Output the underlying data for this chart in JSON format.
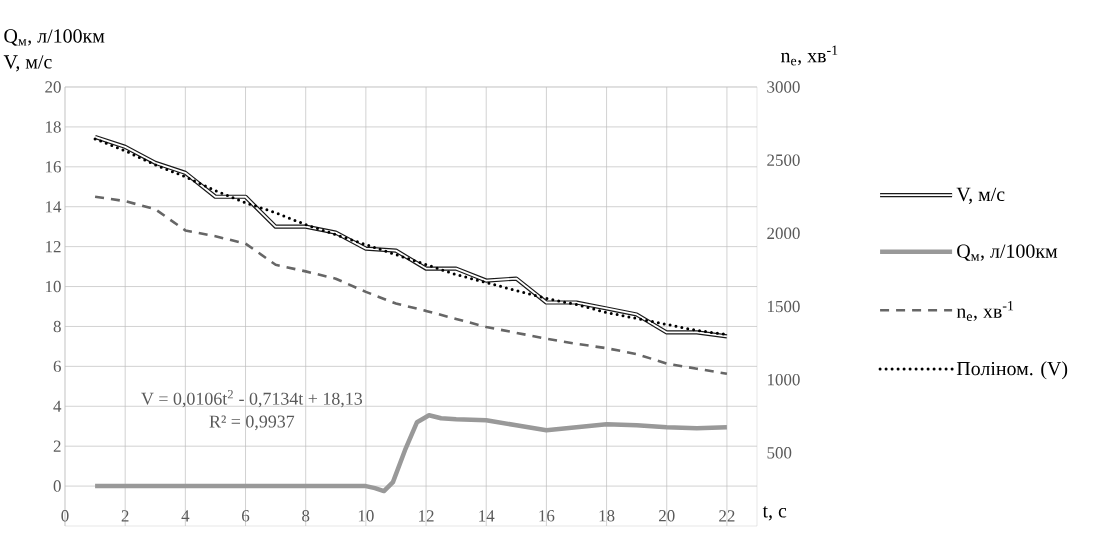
{
  "chart_data": {
    "type": "line",
    "ylabel": "Q$_{м}$, л/100км V, м/с",
    "y2label": "n$_{e}$, хв$^{-1}$",
    "xlabel": "t, с",
    "xlim": [
      0,
      23
    ],
    "xticks": [
      0,
      2,
      4,
      6,
      8,
      10,
      12,
      14,
      16,
      18,
      20,
      22
    ],
    "ylim": [
      -2,
      20
    ],
    "yticks": [
      0,
      2,
      4,
      6,
      8,
      10,
      12,
      14,
      16,
      18,
      20
    ],
    "y2lim": [
      0,
      3000
    ],
    "y2ticks": [
      500,
      1000,
      1500,
      2000,
      2500,
      3000
    ],
    "grid": true,
    "legend": "right",
    "annotations": [
      "V = 0,0106t$^{2}$ - 0,7134t + 18,13",
      "R² = 0,9937"
    ],
    "series": [
      {
        "name": "V, м/с",
        "color": "#1a1a1a",
        "line_style": "solid",
        "x": [
          1,
          2,
          3,
          4,
          5,
          6,
          7,
          8,
          9,
          10,
          11,
          12,
          13,
          14,
          15,
          16,
          17,
          18,
          19,
          20,
          21,
          22
        ],
        "values": [
          17.5,
          17.0,
          16.2,
          15.7,
          14.5,
          14.5,
          13.0,
          13.0,
          12.7,
          11.9,
          11.8,
          10.9,
          10.9,
          10.3,
          10.4,
          9.2,
          9.2,
          8.9,
          8.6,
          7.7,
          7.7,
          7.5
        ]
      },
      {
        "name": "Q$_{м}$, л/100км",
        "color": "#999999",
        "line_style": "solid",
        "x": [
          1,
          2,
          3,
          4,
          5,
          6,
          7,
          8,
          9,
          10,
          10.3,
          10.6,
          10.9,
          11.3,
          11.7,
          12.1,
          12.5,
          13,
          14,
          15,
          16,
          17,
          18,
          19,
          20,
          21,
          22
        ],
        "values": [
          0,
          0,
          0,
          0,
          0,
          0,
          0,
          0,
          0,
          0,
          -0.1,
          -0.25,
          0.2,
          1.8,
          3.2,
          3.55,
          3.4,
          3.35,
          3.3,
          3.05,
          2.8,
          2.95,
          3.1,
          3.05,
          2.95,
          2.9,
          2.95
        ]
      },
      {
        "name": "n$_{e}$, хв$^{-1}$",
        "color": "#666666",
        "line_style": "dashed",
        "axis": "y2",
        "x": [
          1,
          2,
          3,
          4,
          5,
          6,
          7,
          8,
          9,
          10,
          11,
          12,
          13,
          14,
          15,
          16,
          17,
          18,
          19,
          20,
          21,
          22
        ],
        "values": [
          2250,
          2220,
          2165,
          2020,
          1980,
          1930,
          1785,
          1740,
          1690,
          1600,
          1520,
          1470,
          1415,
          1360,
          1320,
          1280,
          1245,
          1215,
          1175,
          1110,
          1075,
          1040
        ]
      },
      {
        "name": "Поліном. (V)",
        "color": "#000000",
        "line_style": "dotted",
        "x": [
          1,
          2,
          3,
          4,
          5,
          6,
          7,
          8,
          9,
          10,
          11,
          12,
          13,
          14,
          15,
          16,
          17,
          18,
          19,
          20,
          21,
          22
        ],
        "values": [
          17.4,
          16.8,
          16.1,
          15.5,
          14.8,
          14.2,
          13.7,
          13.1,
          12.6,
          12.1,
          11.6,
          11.1,
          10.6,
          10.2,
          9.8,
          9.4,
          9.1,
          8.7,
          8.4,
          8.1,
          7.8,
          7.6
        ]
      }
    ]
  }
}
